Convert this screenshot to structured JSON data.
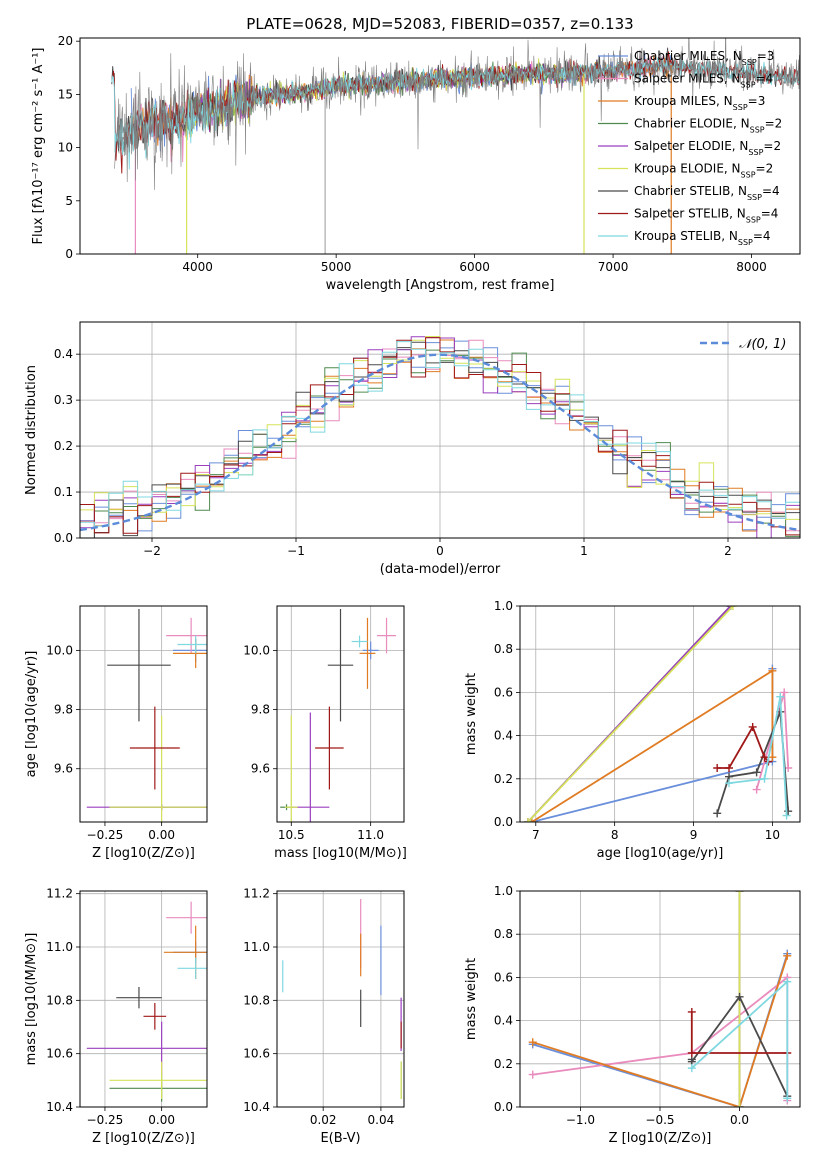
{
  "title": "PLATE=0628, MJD=52083, FIBERID=0357, z=0.133",
  "colors": {
    "Chabrier MILES": "#6a8fdb",
    "Salpeter MILES": "#e98bbd",
    "Kroupa MILES": "#e07b22",
    "Chabrier ELODIE": "#4f8a4f",
    "Salpeter ELODIE": "#9b3fbf",
    "Kroupa ELODIE": "#d6e35a",
    "Chabrier STELIB": "#4a4a4a",
    "Salpeter STELIB": "#a01818",
    "Kroupa STELIB": "#7fd8e0"
  },
  "chart_data": [
    {
      "id": "spectrum",
      "type": "line",
      "title": "PLATE=0628, MJD=52083, FIBERID=0357, z=0.133",
      "xlabel": "wavelength [Angstrom, rest frame]",
      "ylabel": "Flux [fλ10⁻¹⁷ erg cm⁻² s⁻¹ A⁻¹]",
      "xlim": [
        3150,
        8350
      ],
      "ylim": [
        0,
        20.3
      ],
      "xticks": [
        4000,
        5000,
        6000,
        7000,
        8000
      ],
      "yticks": [
        0,
        5,
        10,
        15,
        20
      ],
      "grid": false,
      "legend_position": "right",
      "legend": [
        "Chabrier MILES, N_SSP=3",
        "Salpeter MILES, N_SSP=4",
        "Kroupa MILES, N_SSP=3",
        "Chabrier ELODIE, N_SSP=2",
        "Salpeter ELODIE, N_SSP=2",
        "Kroupa ELODIE, N_SSP=2",
        "Chabrier STELIB, N_SSP=4",
        "Salpeter STELIB, N_SSP=4",
        "Kroupa STELIB, N_SSP=4"
      ],
      "continuum": [
        [
          3400,
          10.5
        ],
        [
          3600,
          12.5
        ],
        [
          3800,
          12.2
        ],
        [
          3950,
          13.0
        ],
        [
          4100,
          13.5
        ],
        [
          4300,
          14.5
        ],
        [
          4500,
          15.0
        ],
        [
          4800,
          15.2
        ],
        [
          5000,
          15.8
        ],
        [
          5300,
          16.0
        ],
        [
          5600,
          16.3
        ],
        [
          6000,
          16.7
        ],
        [
          6400,
          16.9
        ],
        [
          6800,
          17.0
        ],
        [
          7100,
          17.3
        ],
        [
          7400,
          17.8
        ],
        [
          7700,
          17.3
        ],
        [
          8000,
          17.0
        ],
        [
          8350,
          16.4
        ]
      ],
      "model_ranges": {
        "MILES": [
          3520,
          7430
        ],
        "ELODIE": [
          3900,
          6800
        ],
        "STELIB": [
          3380,
          8350
        ]
      },
      "model_drops": [
        [
          3550,
          "Salpeter MILES"
        ],
        [
          3920,
          "Kroupa ELODIE"
        ],
        [
          6790,
          "Kroupa ELODIE"
        ],
        [
          7420,
          "Kroupa MILES"
        ]
      ],
      "data_dips": [
        4920
      ]
    },
    {
      "id": "residuals",
      "type": "histogram",
      "xlabel": "(data-model)/error",
      "ylabel": "Normed distribution",
      "xlim": [
        -2.5,
        2.5
      ],
      "ylim": [
        0,
        0.47
      ],
      "xticks": [
        -2,
        -1,
        0,
        1,
        2
      ],
      "yticks": [
        0.0,
        0.1,
        0.2,
        0.3,
        0.4
      ],
      "grid": true,
      "legend_position": "top-right",
      "legend": [
        "𝒩(0, 1)"
      ],
      "bin_width": 0.1,
      "reference_curve": "N(0,1)"
    },
    {
      "id": "age_vs_Z",
      "type": "errorbar",
      "xlabel": "Z [log10(Z/Z⊙)]",
      "ylabel": "age [log10(age/yr)]",
      "xlim": [
        -0.36,
        0.2
      ],
      "ylim": [
        9.42,
        10.15
      ],
      "xticks": [
        -0.25,
        0.0
      ],
      "yticks": [
        9.6,
        9.8,
        10.0
      ],
      "grid": true,
      "points": [
        {
          "model": "Chabrier MILES",
          "x": 0.15,
          "y": 10.0,
          "xerr": 0.1,
          "yerr": 0.04
        },
        {
          "model": "Salpeter MILES",
          "x": 0.13,
          "y": 10.05,
          "xerr": 0.11,
          "yerr": 0.06
        },
        {
          "model": "Kroupa MILES",
          "x": 0.15,
          "y": 9.99,
          "xerr": 0.1,
          "yerr": 0.05
        },
        {
          "model": "Chabrier ELODIE",
          "x": 0.0,
          "y": 9.47,
          "xerr": 0.23,
          "yerr": 0.01
        },
        {
          "model": "Salpeter ELODIE",
          "x": 0.0,
          "y": 9.47,
          "xerr": 0.33,
          "yerr": 0.01
        },
        {
          "model": "Kroupa ELODIE",
          "x": 0.0,
          "y": 9.47,
          "xerr": 0.23,
          "yerr": 0.31
        },
        {
          "model": "Chabrier STELIB",
          "x": -0.1,
          "y": 9.95,
          "xerr": 0.14,
          "yerr": 0.19
        },
        {
          "model": "Salpeter STELIB",
          "x": -0.03,
          "y": 9.67,
          "xerr": 0.11,
          "yerr": 0.14
        },
        {
          "model": "Kroupa STELIB",
          "x": 0.15,
          "y": 10.02,
          "xerr": 0.08,
          "yerr": 0.03
        }
      ]
    },
    {
      "id": "age_vs_mass",
      "type": "errorbar",
      "xlabel": "mass [log10(M/M⊙)]",
      "ylabel": "",
      "xlim": [
        10.41,
        11.21
      ],
      "ylim": [
        9.42,
        10.15
      ],
      "xticks": [
        10.5,
        11.0
      ],
      "yticks": [
        9.6,
        9.8,
        10.0
      ],
      "grid": true,
      "points": [
        {
          "model": "Chabrier MILES",
          "x": 11.0,
          "y": 10.0,
          "xerr": 0.05,
          "yerr": 0.03
        },
        {
          "model": "Salpeter MILES",
          "x": 11.1,
          "y": 10.05,
          "xerr": 0.06,
          "yerr": 0.06
        },
        {
          "model": "Kroupa MILES",
          "x": 10.98,
          "y": 9.99,
          "xerr": 0.05,
          "yerr": 0.12
        },
        {
          "model": "Chabrier ELODIE",
          "x": 10.47,
          "y": 9.47,
          "xerr": 0.04,
          "yerr": 0.01
        },
        {
          "model": "Salpeter ELODIE",
          "x": 10.62,
          "y": 9.47,
          "xerr": 0.12,
          "yerr": 0.32
        },
        {
          "model": "Kroupa ELODIE",
          "x": 10.5,
          "y": 9.47,
          "xerr": 0.04,
          "yerr": 0.31
        },
        {
          "model": "Chabrier STELIB",
          "x": 10.81,
          "y": 9.95,
          "xerr": 0.08,
          "yerr": 0.19
        },
        {
          "model": "Salpeter STELIB",
          "x": 10.74,
          "y": 9.67,
          "xerr": 0.09,
          "yerr": 0.14
        },
        {
          "model": "Kroupa STELIB",
          "x": 10.93,
          "y": 10.03,
          "xerr": 0.05,
          "yerr": 0.02
        }
      ]
    },
    {
      "id": "weight_vs_age",
      "type": "line",
      "xlabel": "age  [log10(age/yr)]",
      "ylabel": "mass weight",
      "xlim": [
        6.8,
        10.35
      ],
      "ylim": [
        0,
        1
      ],
      "xticks": [
        7,
        8,
        9,
        10
      ],
      "yticks": [
        0.0,
        0.2,
        0.4,
        0.6,
        0.8,
        1.0
      ],
      "grid": true,
      "series": [
        {
          "model": "Chabrier MILES",
          "x": [
            6.95,
            10.0,
            10.0
          ],
          "y": [
            0.0,
            0.28,
            0.71
          ]
        },
        {
          "model": "Salpeter MILES",
          "x": [
            9.8,
            10.15,
            10.2
          ],
          "y": [
            0.15,
            0.6,
            0.25
          ]
        },
        {
          "model": "Kroupa MILES",
          "x": [
            6.95,
            10.0,
            10.0
          ],
          "y": [
            0.0,
            0.7,
            0.3
          ]
        },
        {
          "model": "Chabrier ELODIE",
          "x": [
            6.9,
            9.47
          ],
          "y": [
            0.0,
            1.0
          ]
        },
        {
          "model": "Salpeter ELODIE",
          "x": [
            6.9,
            9.47
          ],
          "y": [
            0.0,
            1.0
          ]
        },
        {
          "model": "Kroupa ELODIE",
          "x": [
            6.9,
            9.5
          ],
          "y": [
            0.0,
            1.0
          ]
        },
        {
          "model": "Chabrier STELIB",
          "x": [
            9.3,
            9.45,
            9.8,
            10.1,
            10.2
          ],
          "y": [
            0.04,
            0.21,
            0.23,
            0.51,
            0.05
          ]
        },
        {
          "model": "Salpeter STELIB",
          "x": [
            9.3,
            9.45,
            9.75,
            9.9,
            9.95
          ],
          "y": [
            0.25,
            0.25,
            0.44,
            0.3,
            0.28
          ]
        },
        {
          "model": "Kroupa STELIB",
          "x": [
            9.45,
            9.9,
            10.1,
            10.18
          ],
          "y": [
            0.18,
            0.2,
            0.58,
            0.03
          ]
        }
      ]
    },
    {
      "id": "mass_vs_Z",
      "type": "errorbar",
      "xlabel": "Z [log10(Z/Z⊙)]",
      "ylabel": "mass [log10(M/M⊙)]",
      "xlim": [
        -0.36,
        0.2
      ],
      "ylim": [
        10.4,
        11.21
      ],
      "xticks": [
        -0.25,
        0.0
      ],
      "yticks": [
        10.4,
        10.6,
        10.8,
        11.0,
        11.2
      ],
      "grid": true,
      "points": [
        {
          "model": "Chabrier MILES",
          "x": 0.15,
          "y": 10.98,
          "xerr": 0.1,
          "yerr": 0.04
        },
        {
          "model": "Salpeter MILES",
          "x": 0.13,
          "y": 11.11,
          "xerr": 0.11,
          "yerr": 0.06
        },
        {
          "model": "Kroupa MILES",
          "x": 0.15,
          "y": 10.98,
          "xerr": 0.14,
          "yerr": 0.1
        },
        {
          "model": "Chabrier ELODIE",
          "x": 0.0,
          "y": 10.47,
          "xerr": 0.23,
          "yerr": 0.05
        },
        {
          "model": "Salpeter ELODIE",
          "x": 0.0,
          "y": 10.62,
          "xerr": 0.33,
          "yerr": 0.1
        },
        {
          "model": "Kroupa ELODIE",
          "x": 0.0,
          "y": 10.5,
          "xerr": 0.23,
          "yerr": 0.07
        },
        {
          "model": "Chabrier STELIB",
          "x": -0.1,
          "y": 10.81,
          "xerr": 0.1,
          "yerr": 0.04
        },
        {
          "model": "Salpeter STELIB",
          "x": -0.03,
          "y": 10.74,
          "xerr": 0.05,
          "yerr": 0.05
        },
        {
          "model": "Kroupa STELIB",
          "x": 0.15,
          "y": 10.92,
          "xerr": 0.08,
          "yerr": 0.04
        }
      ]
    },
    {
      "id": "mass_vs_ebv",
      "type": "errorbar",
      "xlabel": "E(B-V)",
      "ylabel": "",
      "xlim": [
        0.004,
        0.048
      ],
      "ylim": [
        10.4,
        11.21
      ],
      "xticks": [
        0.02,
        0.04
      ],
      "yticks": [
        10.4,
        10.6,
        10.8,
        11.0,
        11.2
      ],
      "grid": true,
      "points": [
        {
          "model": "Chabrier MILES",
          "x": 0.04,
          "y": 10.95,
          "xerr": 0,
          "yerr": 0.13
        },
        {
          "model": "Salpeter MILES",
          "x": 0.033,
          "y": 11.05,
          "xerr": 0,
          "yerr": 0.13
        },
        {
          "model": "Kroupa MILES",
          "x": 0.033,
          "y": 10.97,
          "xerr": 0,
          "yerr": 0.08
        },
        {
          "model": "Chabrier ELODIE",
          "x": 0.047,
          "y": 10.5,
          "xerr": 0,
          "yerr": 0.07
        },
        {
          "model": "Salpeter ELODIE",
          "x": 0.047,
          "y": 10.71,
          "xerr": 0,
          "yerr": 0.1
        },
        {
          "model": "Kroupa ELODIE",
          "x": 0.047,
          "y": 10.5,
          "xerr": 0,
          "yerr": 0.07
        },
        {
          "model": "Chabrier STELIB",
          "x": 0.033,
          "y": 10.77,
          "xerr": 0,
          "yerr": 0.07
        },
        {
          "model": "Salpeter STELIB",
          "x": 0.047,
          "y": 10.67,
          "xerr": 0,
          "yerr": 0.05
        },
        {
          "model": "Kroupa STELIB",
          "x": 0.006,
          "y": 10.89,
          "xerr": 0,
          "yerr": 0.06
        }
      ]
    },
    {
      "id": "weight_vs_Z",
      "type": "line",
      "xlabel": "Z [log10(Z/Z⊙)]",
      "ylabel": "mass weight",
      "xlim": [
        -1.38,
        0.38
      ],
      "ylim": [
        0,
        1
      ],
      "xticks": [
        -1.0,
        -0.5,
        0.0
      ],
      "yticks": [
        0.0,
        0.2,
        0.4,
        0.6,
        0.8,
        1.0
      ],
      "grid": true,
      "series": [
        {
          "model": "Chabrier MILES",
          "x": [
            -1.3,
            0.0,
            0.3
          ],
          "y": [
            0.29,
            0.0,
            0.71
          ]
        },
        {
          "model": "Salpeter MILES",
          "x": [
            -1.3,
            -0.3,
            0.3,
            0.3
          ],
          "y": [
            0.15,
            0.25,
            0.6,
            0.03
          ]
        },
        {
          "model": "Kroupa MILES",
          "x": [
            -1.3,
            0.0,
            0.3
          ],
          "y": [
            0.3,
            0.0,
            0.7
          ]
        },
        {
          "model": "Chabrier ELODIE",
          "x": [
            0.0,
            0.0
          ],
          "y": [
            0.0,
            1.0
          ]
        },
        {
          "model": "Salpeter ELODIE",
          "x": [
            0.0,
            0.0
          ],
          "y": [
            0.0,
            1.0
          ]
        },
        {
          "model": "Kroupa ELODIE",
          "x": [
            0.0,
            0.0
          ],
          "y": [
            0.0,
            1.0
          ]
        },
        {
          "model": "Chabrier STELIB",
          "x": [
            -0.3,
            -0.3,
            0.0,
            0.3
          ],
          "y": [
            0.22,
            0.21,
            0.51,
            0.05
          ]
        },
        {
          "model": "Salpeter STELIB",
          "x": [
            -0.3,
            -0.3,
            0.3
          ],
          "y": [
            0.44,
            0.25,
            0.25
          ]
        },
        {
          "model": "Kroupa STELIB",
          "x": [
            -0.3,
            0.3,
            0.3
          ],
          "y": [
            0.18,
            0.58,
            0.04
          ]
        }
      ]
    }
  ]
}
